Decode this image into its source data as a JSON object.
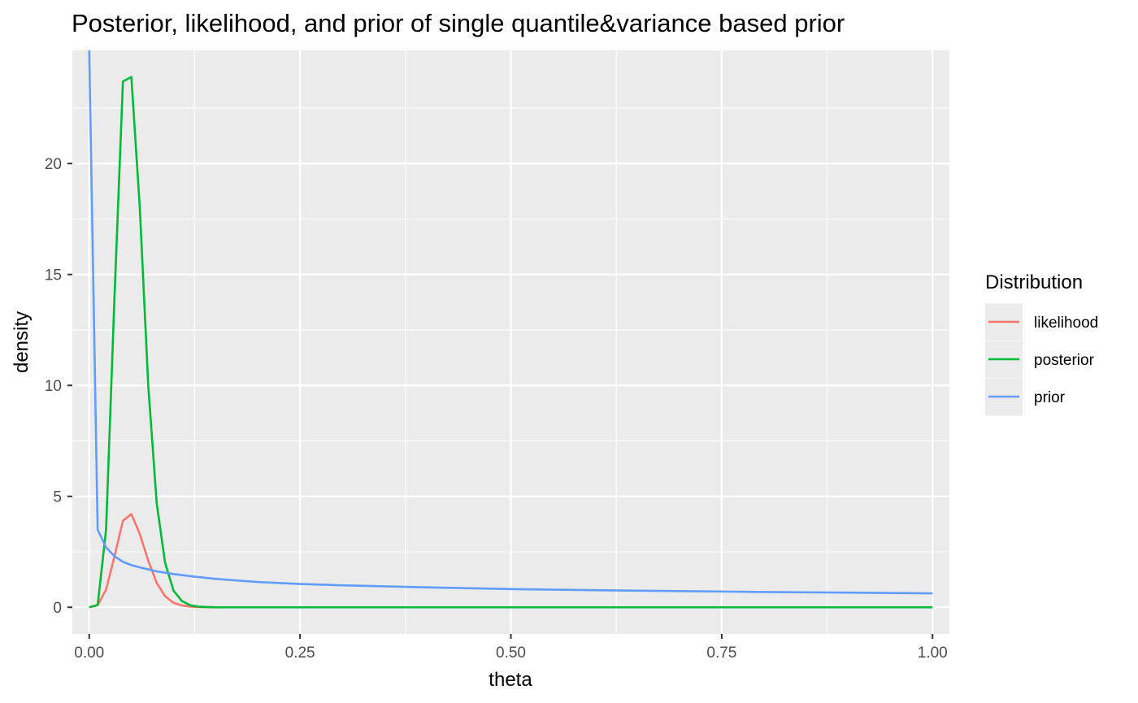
{
  "chart_data": {
    "type": "line",
    "title": "Posterior, likelihood, and prior of single quantile&variance based prior",
    "xlabel": "theta",
    "ylabel": "density",
    "xlim": [
      -0.02,
      1.02
    ],
    "ylim": [
      -1.2,
      25.1
    ],
    "x_ticks": [
      0.0,
      0.25,
      0.5,
      0.75,
      1.0
    ],
    "x_tick_labels": [
      "0.00",
      "0.25",
      "0.50",
      "0.75",
      "1.00"
    ],
    "y_ticks": [
      0,
      5,
      10,
      15,
      20
    ],
    "y_tick_labels": [
      "0",
      "5",
      "10",
      "15",
      "20"
    ],
    "grid": true,
    "legend_title": "Distribution",
    "legend_position": "right",
    "series": [
      {
        "name": "likelihood",
        "color": "#F8766D",
        "x": [
          0.0,
          0.01,
          0.02,
          0.03,
          0.04,
          0.05,
          0.06,
          0.07,
          0.08,
          0.09,
          0.1,
          0.11,
          0.12,
          0.13,
          0.15,
          0.2,
          0.3,
          0.5,
          0.75,
          1.0
        ],
        "y": [
          0.0,
          0.1,
          0.8,
          2.3,
          3.9,
          4.2,
          3.3,
          2.1,
          1.1,
          0.5,
          0.2,
          0.08,
          0.03,
          0.01,
          0.0,
          0.0,
          0.0,
          0.0,
          0.0,
          0.0
        ]
      },
      {
        "name": "posterior",
        "color": "#00BA38",
        "x": [
          0.0,
          0.01,
          0.02,
          0.03,
          0.04,
          0.05,
          0.06,
          0.07,
          0.08,
          0.09,
          0.1,
          0.11,
          0.12,
          0.13,
          0.14,
          0.15,
          0.2,
          0.3,
          0.5,
          0.75,
          1.0
        ],
        "y": [
          0.0,
          0.1,
          3.5,
          14.0,
          23.7,
          23.9,
          18.0,
          10.0,
          4.7,
          2.0,
          0.75,
          0.28,
          0.09,
          0.03,
          0.01,
          0.0,
          0.0,
          0.0,
          0.0,
          0.0,
          0.0
        ]
      },
      {
        "name": "prior",
        "color": "#619CFF",
        "x": [
          0.0,
          0.01,
          0.02,
          0.03,
          0.04,
          0.05,
          0.06,
          0.08,
          0.1,
          0.125,
          0.15,
          0.2,
          0.25,
          0.3,
          0.4,
          0.5,
          0.6,
          0.7,
          0.8,
          0.9,
          1.0
        ],
        "y": [
          25.1,
          3.5,
          2.7,
          2.3,
          2.05,
          1.9,
          1.8,
          1.62,
          1.5,
          1.38,
          1.28,
          1.14,
          1.05,
          0.99,
          0.9,
          0.82,
          0.77,
          0.73,
          0.69,
          0.66,
          0.63
        ]
      }
    ]
  }
}
